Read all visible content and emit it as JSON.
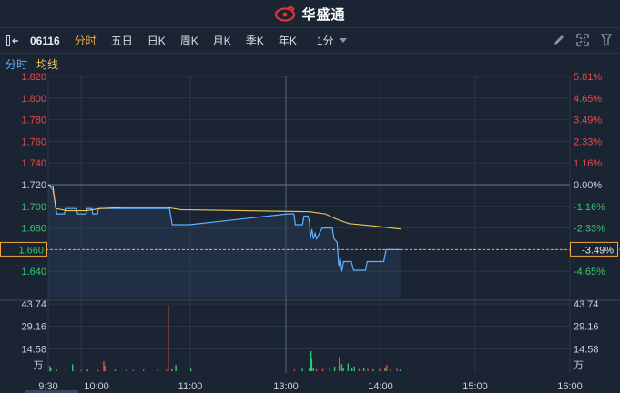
{
  "brand": {
    "name": "华盛通"
  },
  "toolbar": {
    "code": "06116",
    "tabs": [
      {
        "label": "分时",
        "active": true
      },
      {
        "label": "五日",
        "active": false
      },
      {
        "label": "日K",
        "active": false
      },
      {
        "label": "周K",
        "active": false
      },
      {
        "label": "月K",
        "active": false
      },
      {
        "label": "季K",
        "active": false
      },
      {
        "label": "年K",
        "active": false
      }
    ],
    "interval": "1分",
    "icons": [
      "pencil-icon",
      "expand-icon",
      "settings-icon"
    ]
  },
  "legend": {
    "price": "分时",
    "avg": "均线"
  },
  "colors": {
    "up": "#e84a4a",
    "down": "#33c870",
    "price_line": "#5eb1ff",
    "avg_line": "#f0c850",
    "accent": "#f0a83a"
  },
  "chart_data": {
    "type": "line",
    "price_ticks": [
      "1.820",
      "1.800",
      "1.780",
      "1.760",
      "1.740",
      "1.720",
      "1.700",
      "1.680",
      "1.660",
      "1.640"
    ],
    "pct_ticks": [
      "5.81%",
      "4.65%",
      "3.49%",
      "2.33%",
      "1.16%",
      "0.00%",
      "-1.16%",
      "-2.33%",
      "-3.49%",
      "-4.65%"
    ],
    "highlight_price": "1.660",
    "highlight_pct": "-3.49%",
    "volume_ticks": [
      "43.74",
      "29.16",
      "14.58"
    ],
    "volume_unit": "万",
    "time_ticks": [
      "9:30",
      "10:00",
      "11:00",
      "13:00",
      "14:00",
      "15:00",
      "16:00"
    ],
    "prev_close": 1.72,
    "ylim": [
      1.626,
      1.826
    ],
    "price_series": [
      {
        "t": 0,
        "v": 1.72
      },
      {
        "t": 5,
        "v": 1.715
      },
      {
        "t": 9,
        "v": 1.693
      },
      {
        "t": 17,
        "v": 1.693
      },
      {
        "t": 18,
        "v": 1.698
      },
      {
        "t": 30,
        "v": 1.698
      },
      {
        "t": 31,
        "v": 1.693
      },
      {
        "t": 40,
        "v": 1.693
      },
      {
        "t": 41,
        "v": 1.698
      },
      {
        "t": 46,
        "v": 1.698
      },
      {
        "t": 47,
        "v": 1.693
      },
      {
        "t": 52,
        "v": 1.693
      },
      {
        "t": 53,
        "v": 1.698
      },
      {
        "t": 128,
        "v": 1.698
      },
      {
        "t": 131,
        "v": 1.683
      },
      {
        "t": 149,
        "v": 1.683
      },
      {
        "t": 152,
        "v": 1.693
      },
      {
        "t": 160,
        "v": 1.693
      },
      {
        "t": 162,
        "v": 1.683
      },
      {
        "t": 171,
        "v": 1.683
      },
      {
        "t": 173,
        "v": 1.691
      },
      {
        "t": 178,
        "v": 1.691
      },
      {
        "t": 180,
        "v": 1.685
      },
      {
        "t": 181,
        "v": 1.67
      },
      {
        "t": 183,
        "v": 1.679
      },
      {
        "t": 185,
        "v": 1.67
      },
      {
        "t": 187,
        "v": 1.675
      },
      {
        "t": 189,
        "v": 1.67
      },
      {
        "t": 196,
        "v": 1.68
      },
      {
        "t": 209,
        "v": 1.68
      },
      {
        "t": 211,
        "v": 1.67
      },
      {
        "t": 215,
        "v": 1.667
      },
      {
        "t": 217,
        "v": 1.645
      },
      {
        "t": 219,
        "v": 1.652
      },
      {
        "t": 221,
        "v": 1.64
      },
      {
        "t": 223,
        "v": 1.649
      },
      {
        "t": 233,
        "v": 1.649
      },
      {
        "t": 236,
        "v": 1.641
      },
      {
        "t": 251,
        "v": 1.641
      },
      {
        "t": 253,
        "v": 1.649
      },
      {
        "t": 274,
        "v": 1.649
      },
      {
        "t": 277,
        "v": 1.66
      },
      {
        "t": 296,
        "v": 1.66
      }
    ],
    "avg_series": [
      {
        "t": 0,
        "v": 1.72
      },
      {
        "t": 5,
        "v": 1.718
      },
      {
        "t": 8,
        "v": 1.698
      },
      {
        "t": 20,
        "v": 1.696
      },
      {
        "t": 40,
        "v": 1.696
      },
      {
        "t": 55,
        "v": 1.698
      },
      {
        "t": 80,
        "v": 1.699
      },
      {
        "t": 125,
        "v": 1.699
      },
      {
        "t": 140,
        "v": 1.697
      },
      {
        "t": 180,
        "v": 1.695
      },
      {
        "t": 200,
        "v": 1.693
      },
      {
        "t": 215,
        "v": 1.688
      },
      {
        "t": 230,
        "v": 1.684
      },
      {
        "t": 260,
        "v": 1.682
      },
      {
        "t": 296,
        "v": 1.679
      }
    ],
    "volume_max": 43.74,
    "volume_bars": [
      {
        "t": 1,
        "v": 3.5,
        "c": "up"
      },
      {
        "t": 2,
        "v": 2.0,
        "c": "down"
      },
      {
        "t": 8,
        "v": 1.2,
        "c": "down"
      },
      {
        "t": 18,
        "v": 1.0,
        "c": "up"
      },
      {
        "t": 25,
        "v": 4.5,
        "c": "down"
      },
      {
        "t": 34,
        "v": 0.8,
        "c": "up"
      },
      {
        "t": 41,
        "v": 1.0,
        "c": "down"
      },
      {
        "t": 52,
        "v": 0.8,
        "c": "up"
      },
      {
        "t": 58,
        "v": 6.5,
        "c": "up"
      },
      {
        "t": 59,
        "v": 3.5,
        "c": "up"
      },
      {
        "t": 70,
        "v": 1.0,
        "c": "down"
      },
      {
        "t": 82,
        "v": 1.0,
        "c": "down"
      },
      {
        "t": 89,
        "v": 0.8,
        "c": "up"
      },
      {
        "t": 100,
        "v": 1.0,
        "c": "up"
      },
      {
        "t": 115,
        "v": 1.2,
        "c": "down"
      },
      {
        "t": 124,
        "v": 1.0,
        "c": "up"
      },
      {
        "t": 126,
        "v": 43.0,
        "c": "up"
      },
      {
        "t": 130,
        "v": 1.2,
        "c": "down"
      },
      {
        "t": 134,
        "v": 4.0,
        "c": "down"
      },
      {
        "t": 150,
        "v": 1.5,
        "c": "down"
      },
      {
        "t": 160,
        "v": 1.0,
        "c": "up"
      },
      {
        "t": 170,
        "v": 1.5,
        "c": "down"
      },
      {
        "t": 179,
        "v": 2.0,
        "c": "down"
      },
      {
        "t": 181,
        "v": 13.0,
        "c": "down"
      },
      {
        "t": 182,
        "v": 8.0,
        "c": "down"
      },
      {
        "t": 184,
        "v": 2.0,
        "c": "down"
      },
      {
        "t": 188,
        "v": 1.2,
        "c": "up"
      },
      {
        "t": 196,
        "v": 1.5,
        "c": "up"
      },
      {
        "t": 205,
        "v": 2.0,
        "c": "down"
      },
      {
        "t": 211,
        "v": 3.0,
        "c": "down"
      },
      {
        "t": 217,
        "v": 9.0,
        "c": "down"
      },
      {
        "t": 220,
        "v": 4.5,
        "c": "down"
      },
      {
        "t": 222,
        "v": 2.0,
        "c": "down"
      },
      {
        "t": 228,
        "v": 5.0,
        "c": "down"
      },
      {
        "t": 233,
        "v": 2.0,
        "c": "down"
      },
      {
        "t": 236,
        "v": 3.0,
        "c": "down"
      },
      {
        "t": 242,
        "v": 1.5,
        "c": "up"
      },
      {
        "t": 248,
        "v": 2.5,
        "c": "down"
      },
      {
        "t": 253,
        "v": 1.5,
        "c": "up"
      },
      {
        "t": 260,
        "v": 1.2,
        "c": "down"
      },
      {
        "t": 268,
        "v": 1.5,
        "c": "up"
      },
      {
        "t": 275,
        "v": 2.5,
        "c": "down"
      },
      {
        "t": 277,
        "v": 4.0,
        "c": "up"
      },
      {
        "t": 282,
        "v": 1.2,
        "c": "down"
      },
      {
        "t": 290,
        "v": 1.5,
        "c": "up"
      },
      {
        "t": 294,
        "v": 1.0,
        "c": "down"
      }
    ]
  }
}
